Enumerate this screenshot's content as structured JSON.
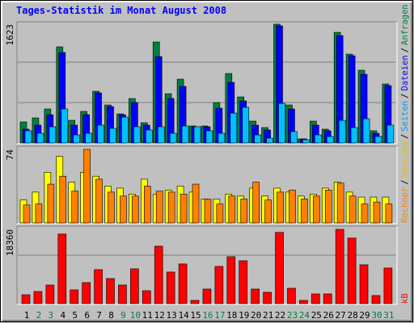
{
  "chart_data": [
    {
      "type": "bar",
      "title": "Tages-Statistik im Monat August 2008",
      "legend_separator": "/",
      "ylim": [
        0,
        1623
      ],
      "yticks": [
        1623
      ],
      "series": [
        {
          "name": "Anfragen",
          "color": "#008040",
          "values": [
            287,
            342,
            464,
            1314,
            309,
            431,
            707,
            519,
            397,
            607,
            276,
            1380,
            673,
            872,
            232,
            232,
            552,
            949,
            629,
            298,
            210,
            1623,
            519,
            55,
            298,
            188,
            1512,
            1214,
            994,
            166,
            806
          ]
        },
        {
          "name": "Dateien",
          "color": "#0000ff",
          "values": [
            188,
            243,
            386,
            1236,
            243,
            386,
            684,
            497,
            386,
            552,
            243,
            1181,
            607,
            773,
            221,
            221,
            475,
            828,
            574,
            243,
            177,
            1601,
            464,
            55,
            243,
            166,
            1468,
            1192,
            938,
            132,
            784
          ]
        },
        {
          "name": "Seiten",
          "color": "#00c0ff",
          "values": [
            166,
            132,
            221,
            464,
            110,
            132,
            243,
            199,
            353,
            221,
            177,
            221,
            132,
            232,
            221,
            166,
            132,
            408,
            486,
            110,
            66,
            541,
            155,
            44,
            110,
            88,
            309,
            210,
            331,
            88,
            243
          ]
        }
      ]
    },
    {
      "type": "bar",
      "ylim": [
        0,
        74
      ],
      "yticks": [
        74
      ],
      "series": [
        {
          "name": "Besuche",
          "color": "#ffff00",
          "values": [
            23,
            31,
            51,
            67,
            41,
            51,
            47,
            37,
            35,
            29,
            44,
            29,
            33,
            37,
            31,
            24,
            24,
            29,
            27,
            35,
            27,
            35,
            31,
            27,
            29,
            35,
            41,
            31,
            26,
            26,
            26
          ]
        },
        {
          "name": "Rechner",
          "color": "#ff8000",
          "values": [
            18,
            19,
            39,
            47,
            32,
            74,
            44,
            31,
            27,
            27,
            37,
            32,
            31,
            29,
            39,
            24,
            19,
            27,
            24,
            41,
            23,
            31,
            33,
            24,
            27,
            33,
            40,
            27,
            19,
            21,
            19
          ]
        }
      ]
    },
    {
      "type": "bar",
      "ylim": [
        0,
        18360
      ],
      "yticks": [
        18360
      ],
      "categories": [
        "1",
        "2",
        "3",
        "4",
        "5",
        "6",
        "7",
        "8",
        "9",
        "10",
        "11",
        "12",
        "13",
        "14",
        "15",
        "16",
        "17",
        "18",
        "19",
        "20",
        "21",
        "22",
        "23",
        "24",
        "25",
        "26",
        "27",
        "28",
        "29",
        "30",
        "31"
      ],
      "category_colors": [
        "#000000",
        "#008040",
        "#008040",
        "#000000",
        "#000000",
        "#000000",
        "#000000",
        "#000000",
        "#008040",
        "#008040",
        "#000000",
        "#000000",
        "#000000",
        "#000000",
        "#000000",
        "#008040",
        "#008040",
        "#000000",
        "#000000",
        "#000000",
        "#000000",
        "#000000",
        "#008040",
        "#008040",
        "#000000",
        "#000000",
        "#000000",
        "#000000",
        "#000000",
        "#008040",
        "#008040"
      ],
      "series": [
        {
          "name": "kB",
          "color": "#ff0000",
          "values": [
            2200,
            3000,
            4600,
            17200,
            3400,
            5200,
            8400,
            6200,
            4600,
            8600,
            3200,
            14200,
            7800,
            9800,
            800,
            3600,
            9200,
            11600,
            10600,
            3600,
            2800,
            17600,
            3800,
            800,
            2400,
            2400,
            18360,
            16200,
            9600,
            2000,
            8800
          ]
        }
      ]
    }
  ]
}
